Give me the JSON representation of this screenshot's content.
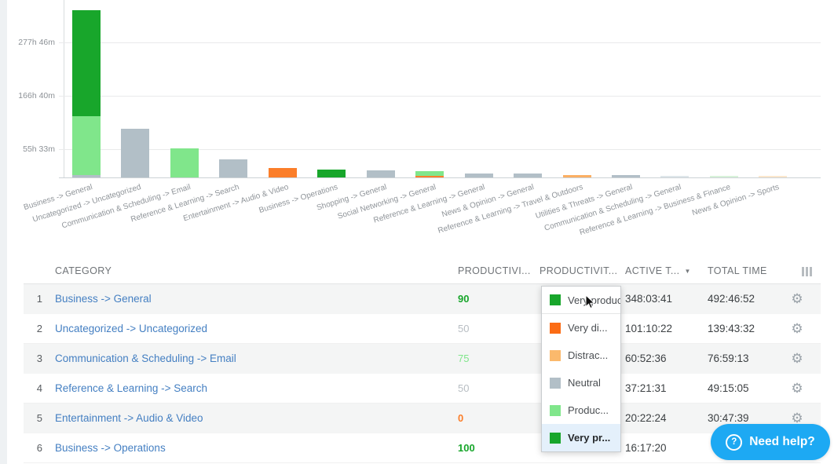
{
  "colors": {
    "very_productive": "#18a62b",
    "productive": "#80e68b",
    "neutral": "#b2bfc7",
    "distracting": "#fbaf63",
    "very_distracting": "#fb7e2a",
    "very_distracting_deep": "#fb6c15",
    "distracting_swatch": "#fbb96c",
    "pale_neutral": "#dfe6ea",
    "pale_productive": "#d8f2da",
    "pale_distracting": "#fbe7cd",
    "score_gray": "#b8bec3",
    "link_blue": "#447fc2",
    "help_blue": "#1da9f3"
  },
  "chart_data": {
    "type": "bar",
    "stacked": true,
    "title": "",
    "xlabel": "",
    "ylabel": "",
    "grid": true,
    "legend": "none",
    "y_ticks": [
      "55h 33m",
      "166h 40m",
      "277h 46m"
    ],
    "y_tick_hours": [
      55.55,
      166.67,
      277.78
    ],
    "categories": [
      "Business -> General",
      "Uncategorized -> Uncategorized",
      "Communication & Scheduling -> Email",
      "Reference & Learning -> Search",
      "Entertainment -> Audio & Video",
      "Business -> Operations",
      "Shopping -> General",
      "Social Networking -> General",
      "Reference & Learning -> General",
      "News & Opinion -> General",
      "Reference & Learning -> Travel & Outdoors",
      "Utilities & Threats -> General",
      "Communication & Scheduling -> General",
      "Reference & Learning -> Business & Finance",
      "News & Opinion -> Sports"
    ],
    "values_hours": [
      348.06,
      101.17,
      60.88,
      37.36,
      20.37,
      16.29,
      15,
      13,
      8.5,
      8,
      5.5,
      5,
      3.5,
      3,
      3
    ],
    "bars": [
      {
        "label": "Business -> General",
        "total_hours": 348.06,
        "segments": [
          {
            "color": "neutral",
            "hours": 5
          },
          {
            "color": "productive",
            "hours": 123
          },
          {
            "color": "very_productive",
            "hours": 220
          }
        ]
      },
      {
        "label": "Uncategorized -> Uncategorized",
        "total_hours": 101.17,
        "segments": [
          {
            "color": "neutral",
            "hours": 101.17
          }
        ]
      },
      {
        "label": "Communication & Scheduling -> Email",
        "total_hours": 60.88,
        "segments": [
          {
            "color": "productive",
            "hours": 60.88
          }
        ]
      },
      {
        "label": "Reference & Learning -> Search",
        "total_hours": 37.36,
        "segments": [
          {
            "color": "neutral",
            "hours": 37.36
          }
        ]
      },
      {
        "label": "Entertainment -> Audio & Video",
        "total_hours": 20.37,
        "segments": [
          {
            "color": "very_distracting",
            "hours": 20.37
          }
        ]
      },
      {
        "label": "Business -> Operations",
        "total_hours": 16.29,
        "segments": [
          {
            "color": "very_productive",
            "hours": 16.29
          }
        ]
      },
      {
        "label": "Shopping -> General",
        "total_hours": 15,
        "segments": [
          {
            "color": "neutral",
            "hours": 15
          }
        ]
      },
      {
        "label": "Social Networking -> General",
        "total_hours": 13,
        "segments": [
          {
            "color": "very_distracting",
            "hours": 3
          },
          {
            "color": "productive",
            "hours": 10
          }
        ]
      },
      {
        "label": "Reference & Learning -> General",
        "total_hours": 8.5,
        "segments": [
          {
            "color": "neutral",
            "hours": 8.5
          }
        ]
      },
      {
        "label": "News & Opinion -> General",
        "total_hours": 8,
        "segments": [
          {
            "color": "neutral",
            "hours": 8
          }
        ]
      },
      {
        "label": "Reference & Learning -> Travel & Outdoors",
        "total_hours": 5.5,
        "segments": [
          {
            "color": "distracting",
            "hours": 5.5
          }
        ]
      },
      {
        "label": "Utilities & Threats -> General",
        "total_hours": 5,
        "segments": [
          {
            "color": "neutral",
            "hours": 5
          }
        ]
      },
      {
        "label": "Communication & Scheduling -> General",
        "total_hours": 3.5,
        "segments": [
          {
            "color": "pale_neutral",
            "hours": 3.5
          }
        ]
      },
      {
        "label": "Reference & Learning -> Business & Finance",
        "total_hours": 3,
        "segments": [
          {
            "color": "pale_productive",
            "hours": 3
          }
        ]
      },
      {
        "label": "News & Opinion -> Sports",
        "total_hours": 3,
        "segments": [
          {
            "color": "pale_distracting",
            "hours": 3
          }
        ]
      }
    ]
  },
  "table": {
    "headers": {
      "category": "CATEGORY",
      "productivity_score": "PRODUCTIVI...",
      "productivity_filter": "PRODUCTIVIT...",
      "active_time": "ACTIVE T...",
      "total_time": "TOTAL TIME"
    },
    "sort_caret": "▼",
    "sorted_by": "ACTIVE T...",
    "sort_direction": "desc",
    "rows": [
      {
        "rank": "1",
        "category": "Business -> General",
        "score": "90",
        "score_color": "very_productive",
        "score_bold": true,
        "active": "348:03:41",
        "total": "492:46:52"
      },
      {
        "rank": "2",
        "category": "Uncategorized -> Uncategorized",
        "score": "50",
        "score_color": "score_gray",
        "score_bold": false,
        "active": "101:10:22",
        "total": "139:43:32"
      },
      {
        "rank": "3",
        "category": "Communication & Scheduling -> Email",
        "score": "75",
        "score_color": "productive",
        "score_bold": false,
        "active": "60:52:36",
        "total": "76:59:13"
      },
      {
        "rank": "4",
        "category": "Reference & Learning -> Search",
        "score": "50",
        "score_color": "score_gray",
        "score_bold": false,
        "active": "37:21:31",
        "total": "49:15:05"
      },
      {
        "rank": "5",
        "category": "Entertainment -> Audio & Video",
        "score": "0",
        "score_color": "very_distracting",
        "score_bold": true,
        "active": "20:22:24",
        "total": "30:47:39"
      },
      {
        "rank": "6",
        "category": "Business -> Operations",
        "score": "100",
        "score_color": "very_productive",
        "score_bold": true,
        "active": "16:17:20",
        "total": ""
      }
    ],
    "gear_icon": "⚙"
  },
  "dropdown": {
    "items": [
      {
        "label": "Very produc",
        "color": "very_productive",
        "selected": true
      },
      {
        "label": "Very di...",
        "color": "very_distracting_deep"
      },
      {
        "label": "Distrac...",
        "color": "distracting_swatch"
      },
      {
        "label": "Neutral",
        "color": "neutral"
      },
      {
        "label": "Produc...",
        "color": "productive"
      },
      {
        "label": "Very pr...",
        "color": "very_productive",
        "highlighted": true
      }
    ]
  },
  "help_button": {
    "label": "Need help?",
    "icon": "?"
  }
}
